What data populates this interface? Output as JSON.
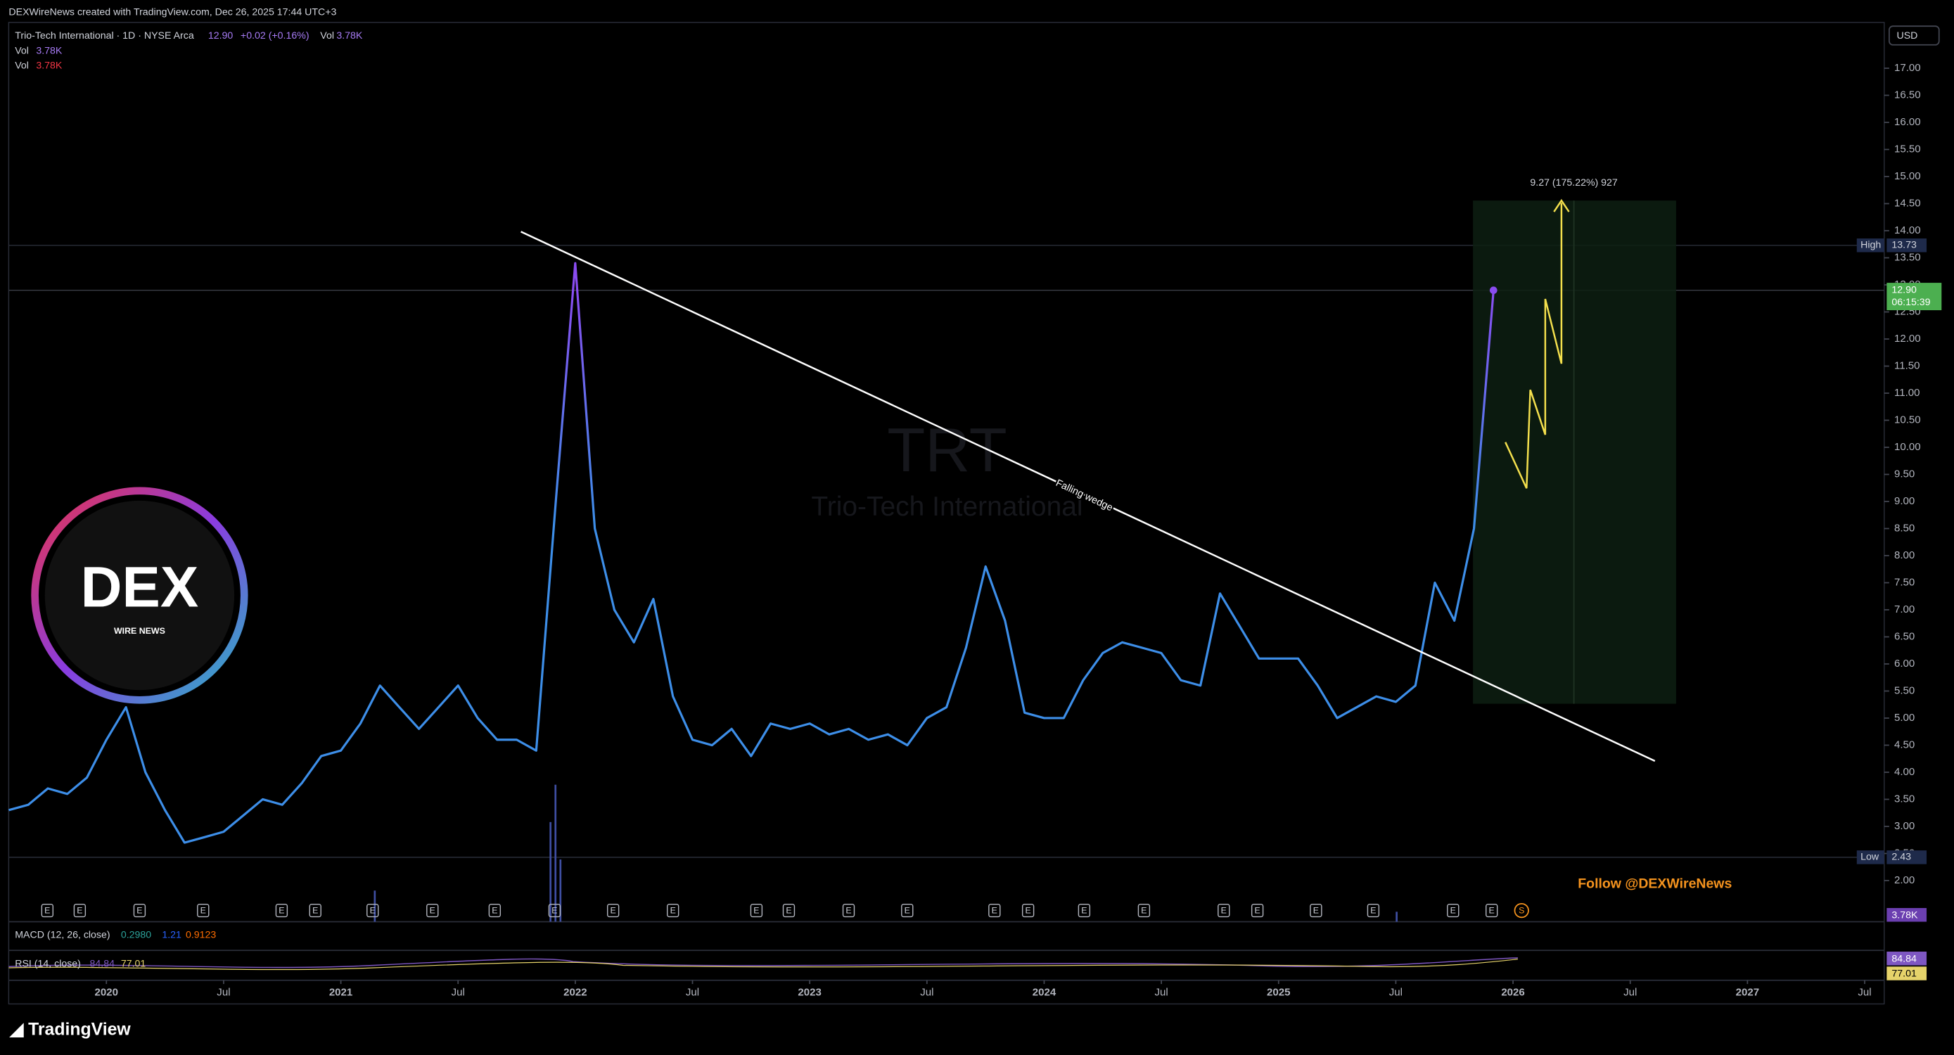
{
  "header": {
    "attribution": "DEXWireNews created with TradingView.com, Dec 26, 2025 17:44 UTC+3"
  },
  "legend": {
    "symbol": "Trio-Tech International · 1D · NYSE Arca",
    "last": "12.90",
    "change": "+0.02 (+0.16%)",
    "vol_label": "Vol",
    "vol": "3.78K",
    "vol2_label": "Vol",
    "vol2": "3.78K"
  },
  "watermark": {
    "ticker": "TRT",
    "name": "Trio-Tech International"
  },
  "chart_data": {
    "type": "line",
    "x": [
      "2019-08",
      "2019-09",
      "2019-10",
      "2019-11",
      "2019-12",
      "2020-01",
      "2020-02",
      "2020-03",
      "2020-04",
      "2020-05",
      "2020-06",
      "2020-07",
      "2020-08",
      "2020-09",
      "2020-10",
      "2020-11",
      "2020-12",
      "2021-01",
      "2021-02",
      "2021-03",
      "2021-04",
      "2021-05",
      "2021-06",
      "2021-07",
      "2021-08",
      "2021-09",
      "2021-10",
      "2021-11",
      "2021-12",
      "2022-01",
      "2022-02",
      "2022-03",
      "2022-04",
      "2022-05",
      "2022-06",
      "2022-07",
      "2022-08",
      "2022-09",
      "2022-10",
      "2022-11",
      "2022-12",
      "2023-01",
      "2023-02",
      "2023-03",
      "2023-04",
      "2023-05",
      "2023-06",
      "2023-07",
      "2023-08",
      "2023-09",
      "2023-10",
      "2023-11",
      "2023-12",
      "2024-01",
      "2024-02",
      "2024-03",
      "2024-04",
      "2024-05",
      "2024-06",
      "2024-07",
      "2024-08",
      "2024-09",
      "2024-10",
      "2024-11",
      "2024-12",
      "2025-01",
      "2025-02",
      "2025-03",
      "2025-04",
      "2025-05",
      "2025-06",
      "2025-07",
      "2025-08",
      "2025-09",
      "2025-10",
      "2025-11",
      "2025-12"
    ],
    "series": [
      {
        "color": "#3d8ee8",
        "values": [
          3.3,
          3.4,
          3.7,
          3.6,
          3.9,
          4.6,
          5.2,
          4.0,
          3.3,
          2.7,
          2.8,
          2.9,
          3.2,
          3.5,
          3.4,
          3.8,
          4.3,
          4.4,
          4.9,
          5.6,
          5.2,
          4.8,
          5.2,
          5.6,
          5.0,
          4.6,
          4.6,
          4.4,
          9.0,
          13.4,
          8.5,
          7.0,
          6.4,
          7.2,
          5.4,
          4.6,
          4.5,
          4.8,
          4.3,
          4.9,
          4.8,
          4.9,
          4.7,
          4.8,
          4.6,
          4.7,
          4.5,
          5.0,
          5.2,
          6.3,
          7.8,
          6.8,
          5.1,
          5.0,
          5.0,
          5.7,
          6.2,
          6.4,
          6.3,
          6.2,
          5.7,
          5.6,
          7.3,
          6.7,
          6.1,
          6.1,
          6.1,
          5.6,
          5.0,
          5.2,
          5.4,
          5.3,
          5.6,
          7.5,
          6.8,
          8.5,
          12.9
        ]
      }
    ],
    "xlim": [
      "2019-08",
      "2027-08"
    ],
    "xticks": [
      {
        "value": "2020-01",
        "label": "2020"
      },
      {
        "value": "2020-07",
        "label": "Jul"
      },
      {
        "value": "2021-01",
        "label": "2021"
      },
      {
        "value": "2021-07",
        "label": "Jul"
      },
      {
        "value": "2022-01",
        "label": "2022"
      },
      {
        "value": "2022-07",
        "label": "Jul"
      },
      {
        "value": "2023-01",
        "label": "2023"
      },
      {
        "value": "2023-07",
        "label": "Jul"
      },
      {
        "value": "2024-01",
        "label": "2024"
      },
      {
        "value": "2024-07",
        "label": "Jul"
      },
      {
        "value": "2025-01",
        "label": "2025"
      },
      {
        "value": "2025-07",
        "label": "Jul"
      },
      {
        "value": "2026-01",
        "label": "2026"
      },
      {
        "value": "2026-07",
        "label": "Jul"
      },
      {
        "value": "2027-01",
        "label": "2027"
      },
      {
        "value": "2027-07",
        "label": "Jul"
      }
    ],
    "ylim": [
      1.24,
      17.8
    ],
    "yticks": [
      {
        "value": 2,
        "label": "2.00"
      },
      {
        "value": 2.5,
        "label": "2.50"
      },
      {
        "value": 3,
        "label": "3.00"
      },
      {
        "value": 3.5,
        "label": "3.50"
      },
      {
        "value": 4,
        "label": "4.00"
      },
      {
        "value": 4.5,
        "label": "4.50"
      },
      {
        "value": 5,
        "label": "5.00"
      },
      {
        "value": 5.5,
        "label": "5.50"
      },
      {
        "value": 6,
        "label": "6.00"
      },
      {
        "value": 6.5,
        "label": "6.50"
      },
      {
        "value": 7,
        "label": "7.00"
      },
      {
        "value": 7.5,
        "label": "7.50"
      },
      {
        "value": 8,
        "label": "8.00"
      },
      {
        "value": 8.5,
        "label": "8.50"
      },
      {
        "value": 9,
        "label": "9.00"
      },
      {
        "value": 9.5,
        "label": "9.50"
      },
      {
        "value": 10,
        "label": "10.00"
      },
      {
        "value": 10.5,
        "label": "10.50"
      },
      {
        "value": 11,
        "label": "11.00"
      },
      {
        "value": 11.5,
        "label": "11.50"
      },
      {
        "value": 12,
        "label": "12.00"
      },
      {
        "value": 12.5,
        "label": "12.50"
      },
      {
        "value": 13,
        "label": "13.00"
      },
      {
        "value": 13.5,
        "label": "13.50"
      },
      {
        "value": 14,
        "label": "14.00"
      },
      {
        "value": 14.5,
        "label": "14.50"
      },
      {
        "value": 15,
        "label": "15.00"
      },
      {
        "value": 15.5,
        "label": "15.50"
      },
      {
        "value": 16,
        "label": "16.00"
      },
      {
        "value": 16.5,
        "label": "16.50"
      },
      {
        "value": 17,
        "label": "17.00"
      }
    ],
    "currency": "USD",
    "high": {
      "label": "High",
      "value": 13.73
    },
    "low": {
      "label": "Low",
      "value": 2.43
    },
    "last": {
      "value": 12.9,
      "label": "12.90",
      "countdown": "06:15:39"
    }
  },
  "earnings_label": "E",
  "split_label": "S",
  "indicators": {
    "macd": {
      "label": "MACD (12, 26, close)",
      "values": [
        "0.2980",
        "1.21",
        "0.9123"
      ]
    },
    "rsi": {
      "label": "RSI (14, close)",
      "values": [
        "84.84",
        "77.01"
      ]
    }
  },
  "annotations": {
    "wedge": "Falling wedge",
    "measure": "9.27 (175.22%) 927",
    "follow": "Follow @DEXWireNews"
  },
  "logo": {
    "main": "DEX",
    "sub": "WIRE NEWS"
  },
  "footer": {
    "brand": "TradingView"
  }
}
